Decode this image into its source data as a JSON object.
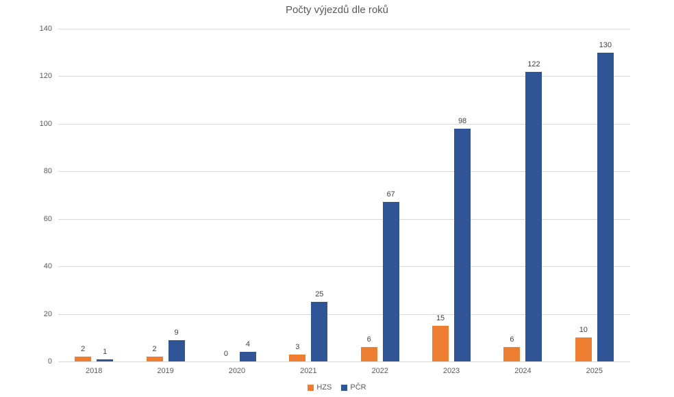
{
  "chart_data": {
    "type": "bar",
    "title": "Počty výjezdů dle roků",
    "categories": [
      "2018",
      "2019",
      "2020",
      "2021",
      "2022",
      "2023",
      "2024",
      "2025"
    ],
    "series": [
      {
        "name": "HZS",
        "color": "#ED7D31",
        "values": [
          2,
          2,
          0,
          3,
          6,
          15,
          6,
          10
        ]
      },
      {
        "name": "PČR",
        "color": "#2F5597",
        "values": [
          1,
          9,
          4,
          25,
          67,
          98,
          122,
          130
        ]
      }
    ],
    "xlabel": "",
    "ylabel": "",
    "ylim": [
      0,
      140
    ],
    "yticks": [
      0,
      20,
      40,
      60,
      80,
      100,
      120,
      140
    ],
    "grid": true,
    "data_labels": true,
    "legend_position": "bottom"
  },
  "colors": {
    "background": "#FFFFFF",
    "title_text": "#595959",
    "tick_text": "#595959",
    "data_label_text": "#404040",
    "gridline": "#D9D9D9"
  }
}
